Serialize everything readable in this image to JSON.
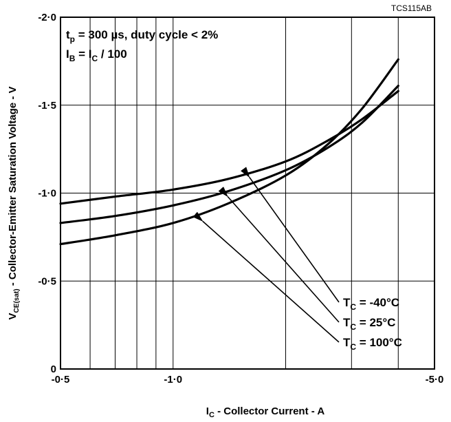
{
  "chart_data": {
    "type": "line",
    "figure_code": "TCS115AB",
    "xlabel": {
      "main": "I",
      "sub": "C",
      "rest": " - Collector Current - A"
    },
    "ylabel": {
      "main": "V",
      "sub": "CE(sat)",
      "rest": " - Collector-Emitter Saturation Voltage - V"
    },
    "x_scale": "log",
    "xlim": [
      0.5,
      5.0
    ],
    "ylim": [
      0,
      -2.0
    ],
    "x_tick_labels": [
      {
        "value": 0.5,
        "label": "-0·5"
      },
      {
        "value": 1.0,
        "label": "-1·0"
      },
      {
        "value": 5.0,
        "label": "-5·0"
      }
    ],
    "y_tick_labels": [
      {
        "value": 0,
        "label": "0"
      },
      {
        "value": -0.5,
        "label": "-0·5"
      },
      {
        "value": -1.0,
        "label": "-1·0"
      },
      {
        "value": -1.5,
        "label": "-1·5"
      },
      {
        "value": -2.0,
        "label": "-2·0"
      }
    ],
    "x_gridlines": [
      0.6,
      0.7,
      0.8,
      0.9,
      1.0,
      2.0,
      3.0,
      4.0
    ],
    "y_gridlines": [
      -0.5,
      -1.0,
      -1.5
    ],
    "conditions": [
      {
        "main": "t",
        "sub": "p",
        "text": " = 300 µs, duty cycle < 2%"
      },
      {
        "main": "I",
        "sub": "B",
        "text": " = I",
        "sub2": "C",
        "text2": " / 100"
      }
    ],
    "series": [
      {
        "name": "-40°C",
        "label_value": " -40°C",
        "x": [
          0.5,
          0.7,
          1.0,
          1.4,
          2.0,
          2.6,
          3.2,
          4.0
        ],
        "y": [
          -0.94,
          -0.98,
          -1.02,
          -1.08,
          -1.18,
          -1.3,
          -1.42,
          -1.58
        ]
      },
      {
        "name": "25°C",
        "label_value": "   25°C",
        "x": [
          0.5,
          0.7,
          1.0,
          1.4,
          2.0,
          2.6,
          3.2,
          4.0
        ],
        "y": [
          -0.83,
          -0.87,
          -0.93,
          -1.01,
          -1.13,
          -1.26,
          -1.4,
          -1.61
        ]
      },
      {
        "name": "100°C",
        "label_value": " 100°C",
        "x": [
          0.5,
          0.7,
          1.0,
          1.4,
          2.0,
          2.6,
          3.2,
          4.0
        ],
        "y": [
          -0.71,
          -0.76,
          -0.83,
          -0.94,
          -1.1,
          -1.28,
          -1.48,
          -1.76
        ]
      }
    ],
    "series_label_prefix": {
      "main": "T",
      "sub": "C",
      "eq": " ="
    },
    "annotations": [
      {
        "series": "-40°C",
        "arrow_to": {
          "x": 1.6,
          "y": -1.09
        }
      },
      {
        "series": "25°C",
        "arrow_to": {
          "x": 1.4,
          "y": -0.98
        }
      },
      {
        "series": "100°C",
        "arrow_to": {
          "x": 1.2,
          "y": -0.84
        }
      }
    ],
    "grid": true,
    "legend": "inline labels bottom-right with arrows"
  }
}
